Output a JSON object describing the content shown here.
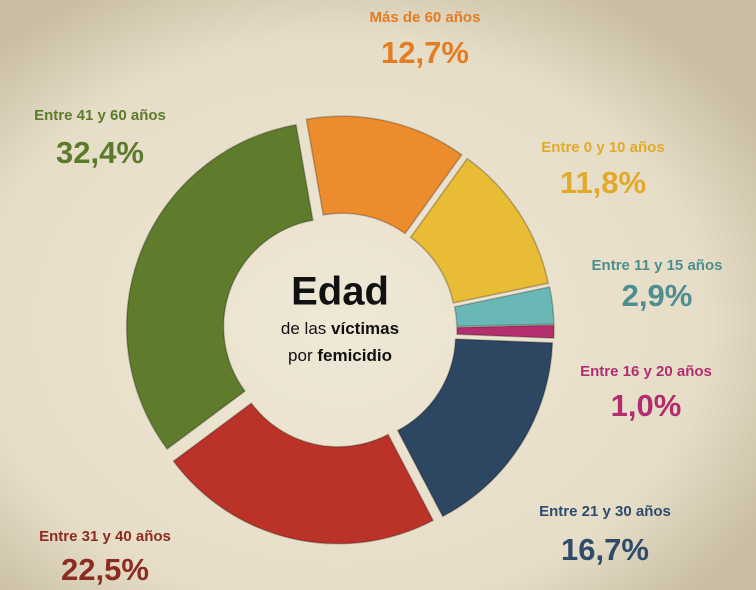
{
  "chart_data": {
    "type": "donut",
    "categories": [
      "Más de 60 años",
      "Entre 0 y 10 años",
      "Entre 11 y 15 años",
      "Entre 16 y 20 años",
      "Entre 21 y 30 años",
      "Entre 31 y 40 años",
      "Entre 41 y 60 años"
    ],
    "values": [
      12.7,
      11.8,
      2.9,
      1.0,
      16.7,
      22.5,
      32.4
    ],
    "value_labels": [
      "12,7%",
      "11,8%",
      "2,9%",
      "1,0%",
      "16,7%",
      "22,5%",
      "32,4%"
    ],
    "colors": [
      "#ec8c2c",
      "#e8bc34",
      "#6ab8b6",
      "#b3306c",
      "#2d4662",
      "#bb3328",
      "#5e7c2c"
    ],
    "label_colors": [
      "#e37c22",
      "#e2aa2a",
      "#4d8f8e",
      "#b22c70",
      "#2f4b6c",
      "#8c2b21",
      "#5b7b2b"
    ],
    "center": {
      "title": "Edad",
      "line1": [
        "de las",
        "víctimas"
      ],
      "line2": [
        "por",
        "femicidio"
      ]
    }
  }
}
